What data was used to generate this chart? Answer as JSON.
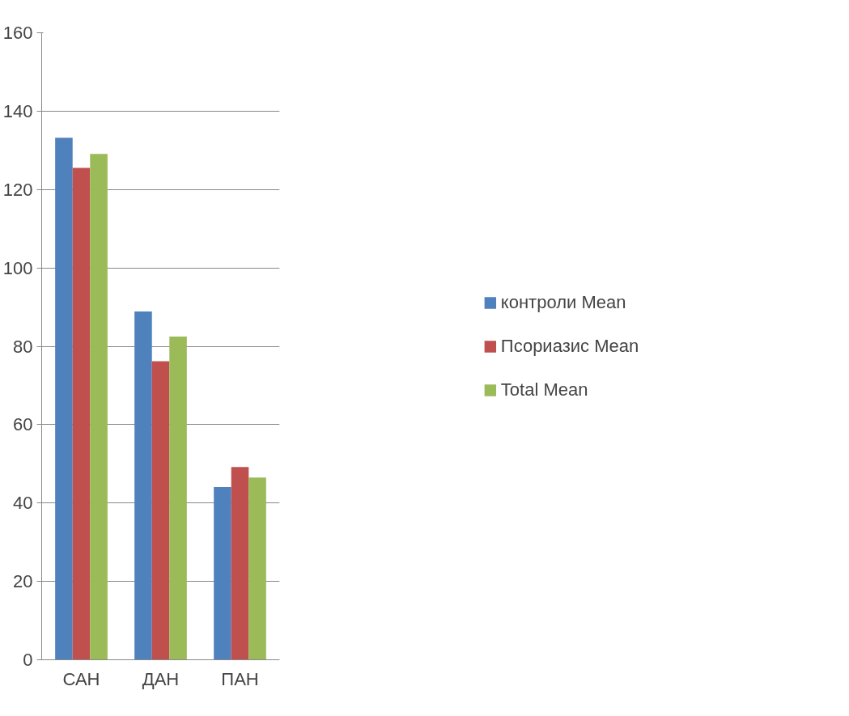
{
  "chart_data": {
    "type": "bar",
    "categories": [
      "САН",
      "ДАН",
      "ПАН"
    ],
    "series": [
      {
        "name": "контроли Mean",
        "color": "#4f81bd",
        "values": [
          133.2,
          88.9,
          44.1
        ]
      },
      {
        "name": "Псориазис Mean",
        "color": "#c0504d",
        "values": [
          125.5,
          76.2,
          49.2
        ]
      },
      {
        "name": "Total Mean",
        "color": "#9bbb59",
        "values": [
          129.1,
          82.5,
          46.5
        ]
      }
    ],
    "ylim": [
      0,
      160
    ],
    "yticks": [
      0,
      20,
      40,
      60,
      80,
      100,
      120,
      140,
      160
    ],
    "grid": "y",
    "legend": "right"
  }
}
